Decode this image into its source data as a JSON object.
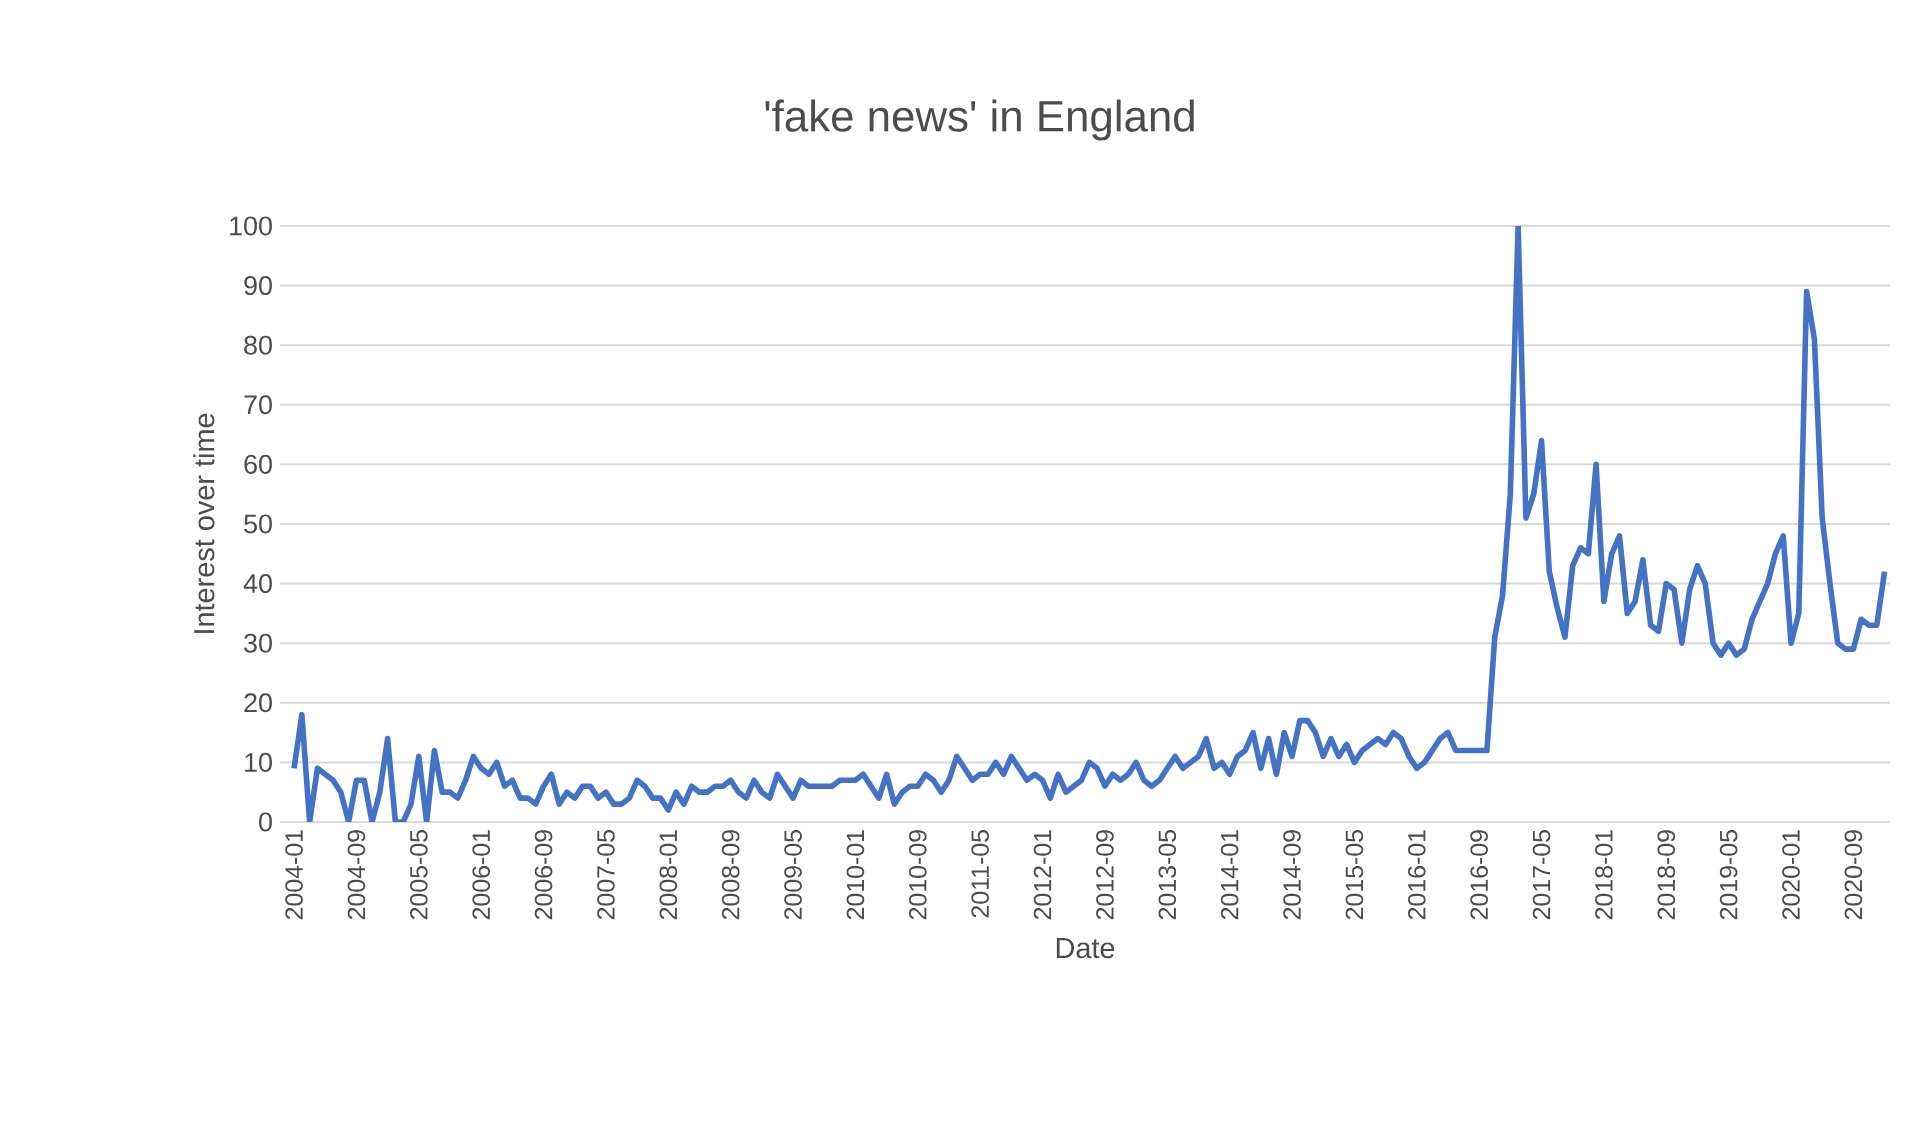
{
  "chart_data": {
    "type": "line",
    "title": "'fake news' in England",
    "xlabel": "Date",
    "ylabel": "Interest over time",
    "categories": [
      "2004-01",
      null,
      null,
      null,
      null,
      null,
      null,
      null,
      "2004-09",
      null,
      null,
      null,
      null,
      null,
      null,
      null,
      "2005-05",
      null,
      null,
      null,
      null,
      null,
      null,
      null,
      "2006-01",
      null,
      null,
      null,
      null,
      null,
      null,
      null,
      "2006-09",
      null,
      null,
      null,
      null,
      null,
      null,
      null,
      "2007-05",
      null,
      null,
      null,
      null,
      null,
      null,
      null,
      "2008-01",
      null,
      null,
      null,
      null,
      null,
      null,
      null,
      "2008-09",
      null,
      null,
      null,
      null,
      null,
      null,
      null,
      "2009-05",
      null,
      null,
      null,
      null,
      null,
      null,
      null,
      "2010-01",
      null,
      null,
      null,
      null,
      null,
      null,
      null,
      "2010-09",
      null,
      null,
      null,
      null,
      null,
      null,
      null,
      "2011-05",
      null,
      null,
      null,
      null,
      null,
      null,
      null,
      "2012-01",
      null,
      null,
      null,
      null,
      null,
      null,
      null,
      "2012-09",
      null,
      null,
      null,
      null,
      null,
      null,
      null,
      "2013-05",
      null,
      null,
      null,
      null,
      null,
      null,
      null,
      "2014-01",
      null,
      null,
      null,
      null,
      null,
      null,
      null,
      "2014-09",
      null,
      null,
      null,
      null,
      null,
      null,
      null,
      "2015-05",
      null,
      null,
      null,
      null,
      null,
      null,
      null,
      "2016-01",
      null,
      null,
      null,
      null,
      null,
      null,
      null,
      "2016-09",
      null,
      null,
      null,
      null,
      null,
      null,
      null,
      "2017-05",
      null,
      null,
      null,
      null,
      null,
      null,
      null,
      "2018-01",
      null,
      null,
      null,
      null,
      null,
      null,
      null,
      "2018-09",
      null,
      null,
      null,
      null,
      null,
      null,
      null,
      "2019-05",
      null,
      null,
      null,
      null,
      null,
      null,
      null,
      "2020-01",
      null,
      null,
      null,
      null,
      null,
      null,
      null,
      "2020-09",
      null,
      null,
      null,
      null
    ],
    "series": [
      {
        "color": "#4472c4",
        "values": [
          9,
          18,
          0,
          9,
          8,
          7,
          5,
          0,
          7,
          7,
          0,
          5,
          14,
          0,
          0,
          3,
          11,
          0,
          12,
          5,
          5,
          4,
          7,
          11,
          9,
          8,
          10,
          6,
          7,
          4,
          4,
          3,
          6,
          8,
          3,
          5,
          4,
          6,
          6,
          4,
          5,
          3,
          3,
          4,
          7,
          6,
          4,
          4,
          2,
          5,
          3,
          6,
          5,
          5,
          6,
          6,
          7,
          5,
          4,
          7,
          5,
          4,
          8,
          6,
          4,
          7,
          6,
          6,
          6,
          6,
          7,
          7,
          7,
          8,
          6,
          4,
          8,
          3,
          5,
          6,
          6,
          8,
          7,
          5,
          7,
          11,
          9,
          7,
          8,
          8,
          10,
          8,
          11,
          9,
          7,
          8,
          7,
          4,
          8,
          5,
          6,
          7,
          10,
          9,
          6,
          8,
          7,
          8,
          10,
          7,
          6,
          7,
          9,
          11,
          9,
          10,
          11,
          14,
          9,
          10,
          8,
          11,
          12,
          15,
          9,
          14,
          8,
          15,
          11,
          17,
          17,
          15,
          11,
          14,
          11,
          13,
          10,
          12,
          13,
          14,
          13,
          15,
          14,
          11,
          9,
          10,
          12,
          14,
          15,
          12,
          12,
          12,
          12,
          12,
          31,
          38,
          55,
          100,
          51,
          55,
          64,
          42,
          36,
          31,
          43,
          46,
          45,
          60,
          37,
          45,
          48,
          35,
          37,
          44,
          33,
          32,
          40,
          39,
          30,
          39,
          43,
          40,
          30,
          28,
          30,
          28,
          29,
          34,
          37,
          40,
          45,
          48,
          30,
          35,
          89,
          81,
          51,
          40,
          30,
          29,
          29,
          34,
          33,
          33,
          42
        ]
      }
    ],
    "ylim": [
      0,
      100
    ],
    "yticks": [
      0,
      10,
      20,
      30,
      40,
      50,
      60,
      70,
      80,
      90,
      100
    ],
    "grid": "y"
  }
}
